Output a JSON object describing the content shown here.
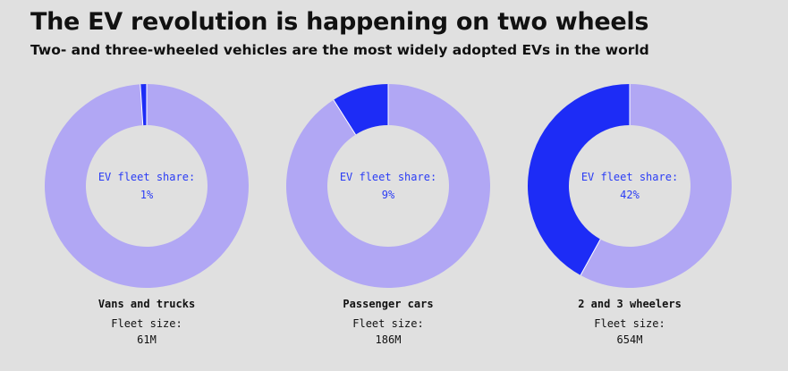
{
  "title": "The EV revolution is happening on two wheels",
  "subtitle": "Two- and three-wheeled vehicles are the most widely adopted EVs in the world",
  "colors": {
    "ev": "#1d2cf6",
    "rest": "#b1a7f4",
    "label": "#2a3cf5",
    "background": "#e0e0e0"
  },
  "chart_data": [
    {
      "type": "pie",
      "category": "Vans and trucks",
      "center_label": "EV fleet share:",
      "share_label": "1%",
      "ev_share": 1,
      "fleet_size_label": "Fleet size:",
      "fleet_size": "61M"
    },
    {
      "type": "pie",
      "category": "Passenger cars",
      "center_label": "EV fleet share:",
      "share_label": "9%",
      "ev_share": 9,
      "fleet_size_label": "Fleet size:",
      "fleet_size": "186M"
    },
    {
      "type": "pie",
      "category": "2 and 3 wheelers",
      "center_label": "EV fleet share:",
      "share_label": "42%",
      "ev_share": 42,
      "fleet_size_label": "Fleet size:",
      "fleet_size": "654M"
    }
  ]
}
